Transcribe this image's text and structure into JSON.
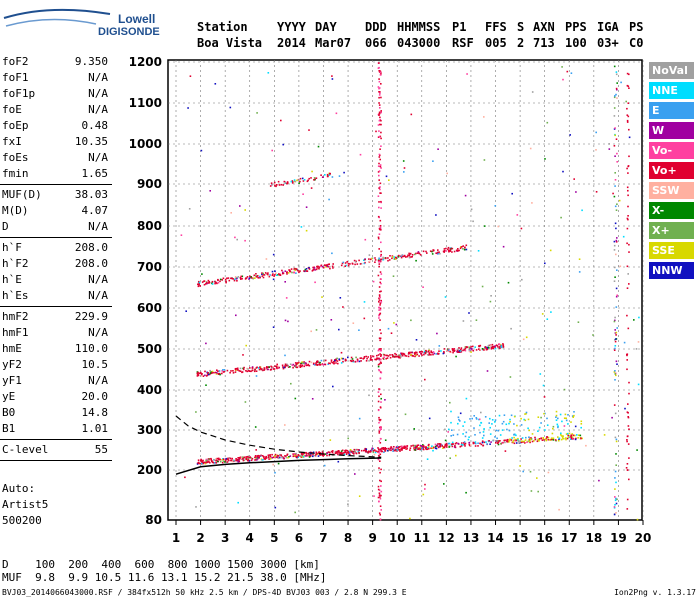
{
  "logo": {
    "top": "Lowell",
    "bottom": "DIGISONDE"
  },
  "header": {
    "cols": [
      {
        "h": "Station",
        "v": "Boa Vista",
        "x": 197
      },
      {
        "h": "YYYY",
        "v": "2014",
        "x": 277
      },
      {
        "h": "DAY",
        "v": "Mar07",
        "x": 315
      },
      {
        "h": "DDD",
        "v": "066",
        "x": 365
      },
      {
        "h": "HHMMSS",
        "v": "043000",
        "x": 397
      },
      {
        "h": "P1",
        "v": "RSF",
        "x": 452
      },
      {
        "h": "FFS",
        "v": "005",
        "x": 485
      },
      {
        "h": "S",
        "v": "2",
        "x": 517
      },
      {
        "h": "AXN",
        "v": "713",
        "x": 533
      },
      {
        "h": "PPS",
        "v": "100",
        "x": 565
      },
      {
        "h": "IGA",
        "v": "03+",
        "x": 597
      },
      {
        "h": "PS",
        "v": "C0",
        "x": 629
      }
    ]
  },
  "params": [
    [
      {
        "n": "foF2",
        "v": "9.350"
      },
      {
        "n": "foF1",
        "v": "N/A"
      },
      {
        "n": "foF1p",
        "v": "N/A"
      },
      {
        "n": "foE",
        "v": "N/A"
      },
      {
        "n": "foEp",
        "v": "0.48"
      },
      {
        "n": "fxI",
        "v": "10.35"
      },
      {
        "n": "foEs",
        "v": "N/A"
      },
      {
        "n": "fmin",
        "v": "1.65"
      }
    ],
    [
      {
        "n": "MUF(D)",
        "v": "38.03"
      },
      {
        "n": "M(D)",
        "v": "4.07"
      },
      {
        "n": "D",
        "v": "N/A"
      }
    ],
    [
      {
        "n": "h`F",
        "v": "208.0"
      },
      {
        "n": "h`F2",
        "v": "208.0"
      },
      {
        "n": "h`E",
        "v": "N/A"
      },
      {
        "n": "h`Es",
        "v": "N/A"
      }
    ],
    [
      {
        "n": "hmF2",
        "v": "229.9"
      },
      {
        "n": "hmF1",
        "v": "N/A"
      },
      {
        "n": "hmE",
        "v": "110.0"
      },
      {
        "n": "yF2",
        "v": "10.5"
      },
      {
        "n": "yF1",
        "v": "N/A"
      },
      {
        "n": "yE",
        "v": "20.0"
      },
      {
        "n": "B0",
        "v": "14.8"
      },
      {
        "n": "B1",
        "v": "1.01"
      }
    ],
    [
      {
        "n": "C-level",
        "v": "55"
      }
    ]
  ],
  "notes": [
    "Auto:",
    "Artist5",
    "500200"
  ],
  "legend": [
    {
      "label": "NoVal",
      "color": "#a0a0a0"
    },
    {
      "label": "NNE",
      "color": "#00ddff"
    },
    {
      "label": "E",
      "color": "#3aa0f0"
    },
    {
      "label": "W",
      "color": "#a000a0"
    },
    {
      "label": "Vo-",
      "color": "#ff40a0"
    },
    {
      "label": "Vo+",
      "color": "#e00030"
    },
    {
      "label": "SSW",
      "color": "#ffb0a0"
    },
    {
      "label": "X-",
      "color": "#008800"
    },
    {
      "label": "X+",
      "color": "#70b050"
    },
    {
      "label": "SSE",
      "color": "#d8d800"
    },
    {
      "label": "NNW",
      "color": "#1010c0"
    }
  ],
  "chart_data": {
    "type": "scatter",
    "xticks": [
      "1",
      "2",
      "3",
      "4",
      "5",
      "6",
      "7",
      "8",
      "9",
      "10",
      "11",
      "12",
      "13",
      "14",
      "15",
      "16",
      "17",
      "18",
      "19",
      "20"
    ],
    "yticks": [
      "80",
      "200",
      "300",
      "400",
      "500",
      "600",
      "700",
      "800",
      "900",
      "1000",
      "1100",
      "1200"
    ],
    "xlim": [
      1,
      20
    ],
    "y_tick_values": [
      80,
      200,
      300,
      400,
      500,
      600,
      700,
      800,
      900,
      1000,
      1100,
      1200
    ],
    "x_units": "MHz",
    "y_units": "km",
    "grid": true,
    "traces": [
      {
        "name": "F2 echo",
        "x_range": [
          1.8,
          17.5
        ],
        "y_range": [
          222,
          285
        ],
        "color": "#e00030"
      },
      {
        "name": "F2 2nd hop",
        "x_range": [
          1.8,
          14.3
        ],
        "y_range": [
          440,
          510
        ],
        "color": "#e00030"
      },
      {
        "name": "F2 3rd hop",
        "x_range": [
          1.8,
          12.9
        ],
        "y_range": [
          660,
          750
        ],
        "color": "#e00030"
      },
      {
        "name": "F2 4th hop",
        "x_range": [
          4.8,
          7.4
        ],
        "y_range": [
          900,
          925
        ],
        "color": "#e00030"
      }
    ],
    "fitted_profile": [
      [
        1.0,
        190
      ],
      [
        2.0,
        208
      ],
      [
        3.0,
        214
      ],
      [
        4.0,
        218
      ],
      [
        5.0,
        221
      ],
      [
        6.0,
        224
      ],
      [
        7.0,
        226
      ],
      [
        8.0,
        228
      ],
      [
        9.35,
        230
      ]
    ],
    "dashed_profile": [
      [
        1.0,
        335
      ],
      [
        1.5,
        310
      ],
      [
        2.0,
        295
      ],
      [
        3.0,
        275
      ],
      [
        4.0,
        262
      ],
      [
        5.0,
        252
      ],
      [
        6.0,
        245
      ],
      [
        7.0,
        240
      ],
      [
        8.0,
        236
      ],
      [
        9.0,
        233
      ],
      [
        9.35,
        232
      ]
    ]
  },
  "footer": {
    "d_label": "D",
    "d_values": "100  200  400  600  800 1000 1500 3000 [km]",
    "muf_label": "MUF",
    "muf_values": "9.8  9.9 10.5 11.6 13.1 15.2 21.5 38.0 [MHz]",
    "filename": "BVJ03_2014066043000.RSF / 384fx512h 50 kHz 2.5 km / DPS-4D BVJ03 003 / 2.8 N 299.3 E",
    "version": "Ion2Png v. 1.3.17"
  }
}
